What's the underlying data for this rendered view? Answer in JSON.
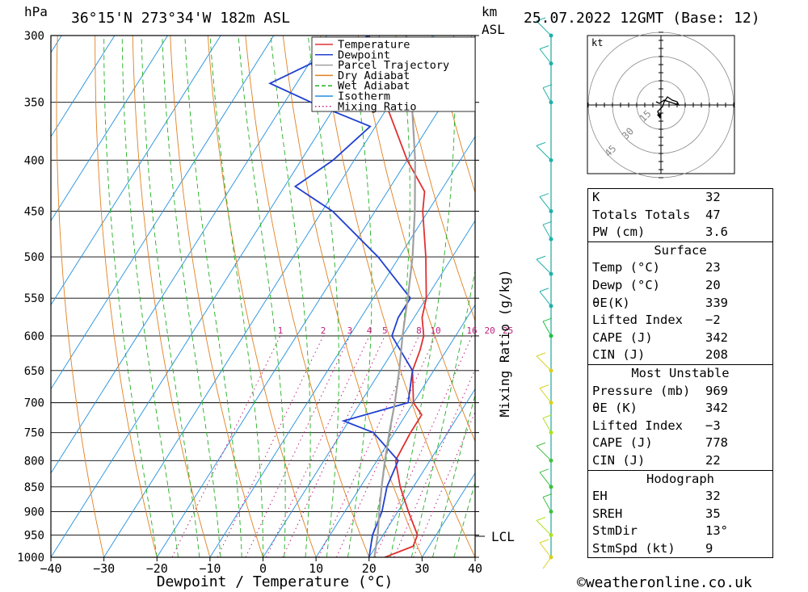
{
  "header": {
    "pressure_unit": "hPa",
    "location": "36°15'N  273°34'W  182m  ASL",
    "km_label": "km",
    "asl_label": "ASL",
    "datetime": "25.07.2022  12GMT  (Base: 12)"
  },
  "legend": [
    {
      "label": "Temperature",
      "color": "#e03030",
      "style": "solid"
    },
    {
      "label": "Dewpoint",
      "color": "#2040d0",
      "style": "solid"
    },
    {
      "label": "Parcel Trajectory",
      "color": "#a0a0a0",
      "style": "solid"
    },
    {
      "label": "Dry Adiabat",
      "color": "#e08020",
      "style": "solid"
    },
    {
      "label": "Wet Adiabat",
      "color": "#20b020",
      "style": "dashed"
    },
    {
      "label": "Isotherm",
      "color": "#2090e0",
      "style": "solid"
    },
    {
      "label": "Mixing Ratio",
      "color": "#c02080",
      "style": "dotted"
    }
  ],
  "axes": {
    "xlabel": "Dewpoint / Temperature (°C)",
    "mixing_label": "Mixing Ratio (g/kg)",
    "lcl_label": "LCL"
  },
  "chart_data": {
    "type": "line",
    "skew_t": true,
    "pressure_levels": [
      300,
      350,
      400,
      450,
      500,
      550,
      600,
      650,
      700,
      750,
      800,
      850,
      900,
      950,
      1000
    ],
    "pressure_tick_labels": [
      "300",
      "350",
      "400",
      "450",
      "500",
      "550",
      "600",
      "650",
      "700",
      "750",
      "800",
      "850",
      "900",
      "950",
      "1000"
    ],
    "xlim": [
      -40,
      40
    ],
    "x_ticks": [
      -40,
      -30,
      -20,
      -10,
      0,
      10,
      20,
      30,
      40
    ],
    "x_tick_labels": [
      "−40",
      "−30",
      "−20",
      "−10",
      "0",
      "10",
      "20",
      "30",
      "40"
    ],
    "mixing_ratio_labels": [
      "1",
      "2",
      "3",
      "4",
      "5",
      "8",
      "10",
      "16",
      "20",
      "25"
    ],
    "lcl_pressure": 958,
    "series": [
      {
        "name": "Temperature",
        "points": [
          [
            1000,
            23
          ],
          [
            975,
            27
          ],
          [
            950,
            26.5
          ],
          [
            900,
            22
          ],
          [
            850,
            17.5
          ],
          [
            800,
            13.5
          ],
          [
            750,
            13
          ],
          [
            720,
            13
          ],
          [
            700,
            10
          ],
          [
            650,
            6
          ],
          [
            620,
            5
          ],
          [
            600,
            4
          ],
          [
            575,
            1.5
          ],
          [
            550,
            0
          ],
          [
            500,
            -5
          ],
          [
            450,
            -11
          ],
          [
            430,
            -13
          ],
          [
            400,
            -20
          ],
          [
            350,
            -31
          ],
          [
            300,
            -42
          ]
        ]
      },
      {
        "name": "Dewpoint",
        "points": [
          [
            1000,
            20
          ],
          [
            950,
            18
          ],
          [
            900,
            17
          ],
          [
            850,
            15
          ],
          [
            800,
            14
          ],
          [
            750,
            6
          ],
          [
            730,
            -1
          ],
          [
            700,
            9
          ],
          [
            650,
            6
          ],
          [
            600,
            -2
          ],
          [
            575,
            -3
          ],
          [
            550,
            -3
          ],
          [
            500,
            -14
          ],
          [
            450,
            -28
          ],
          [
            425,
            -38
          ],
          [
            400,
            -34
          ],
          [
            370,
            -31
          ],
          [
            350,
            -45
          ],
          [
            335,
            -55
          ],
          [
            300,
            -42
          ]
        ]
      },
      {
        "name": "Parcel Trajectory",
        "points": [
          [
            1000,
            21
          ],
          [
            950,
            19
          ],
          [
            900,
            16.5
          ],
          [
            850,
            14
          ],
          [
            800,
            11.5
          ],
          [
            750,
            9
          ],
          [
            700,
            6.5
          ],
          [
            650,
            3.5
          ],
          [
            600,
            0
          ],
          [
            550,
            -3.5
          ],
          [
            500,
            -7.5
          ],
          [
            450,
            -12.5
          ],
          [
            400,
            -18.5
          ],
          [
            350,
            -26
          ],
          [
            300,
            -35
          ]
        ]
      }
    ]
  },
  "hodograph": {
    "unit_label": "kt",
    "ring_labels": [
      "15",
      "30",
      "45"
    ]
  },
  "indices": [
    {
      "key": "K",
      "value": "32"
    },
    {
      "key": "Totals Totals",
      "value": "47"
    },
    {
      "key": "PW (cm)",
      "value": "3.6"
    }
  ],
  "surface": {
    "title": "Surface",
    "rows": [
      {
        "key": "Temp (°C)",
        "value": "23"
      },
      {
        "key": "Dewp (°C)",
        "value": "20"
      },
      {
        "key": "θE(K)",
        "value": "339"
      },
      {
        "key": "Lifted Index",
        "value": "−2"
      },
      {
        "key": "CAPE (J)",
        "value": "342"
      },
      {
        "key": "CIN (J)",
        "value": "208"
      }
    ]
  },
  "most_unstable": {
    "title": "Most Unstable",
    "rows": [
      {
        "key": "Pressure (mb)",
        "value": "969"
      },
      {
        "key": "θE (K)",
        "value": "342"
      },
      {
        "key": "Lifted Index",
        "value": "−3"
      },
      {
        "key": "CAPE (J)",
        "value": "778"
      },
      {
        "key": "CIN (J)",
        "value": "22"
      }
    ]
  },
  "hodograph_table": {
    "title": "Hodograph",
    "rows": [
      {
        "key": "EH",
        "value": "32"
      },
      {
        "key": "SREH",
        "value": "35"
      },
      {
        "key": "StmDir",
        "value": "13°"
      },
      {
        "key": "StmSpd (kt)",
        "value": "9"
      }
    ]
  },
  "footer": {
    "copyright": "©weatheronline.co.uk"
  }
}
